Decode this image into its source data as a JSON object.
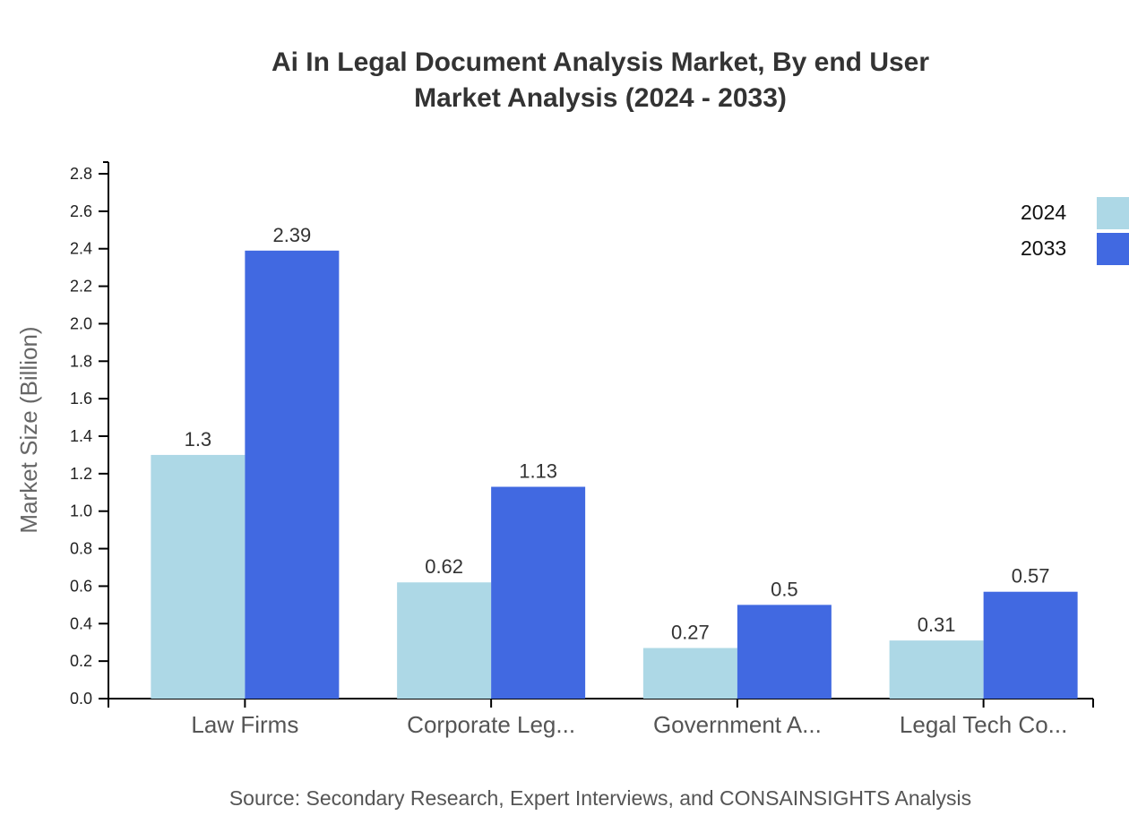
{
  "title": {
    "line1": "Ai In Legal Document Analysis Market, By end User",
    "line2": "Market Analysis (2024 - 2033)"
  },
  "source": "Source: Secondary Research, Expert Interviews, and CONSAINSIGHTS Analysis",
  "legend": [
    {
      "label": "2024",
      "color": "#add8e6"
    },
    {
      "label": "2033",
      "color": "#4169e1"
    }
  ],
  "chart_data": {
    "type": "bar",
    "title": "Ai In Legal Document Analysis Market, By end User Market Analysis (2024 - 2033)",
    "xlabel": "",
    "ylabel": "Market Size (Billion)",
    "ylim": [
      0,
      2.8
    ],
    "yticks": [
      "0.0",
      "0.2",
      "0.4",
      "0.6",
      "0.8",
      "1.0",
      "1.2",
      "1.4",
      "1.6",
      "1.8",
      "2.0",
      "2.2",
      "2.4",
      "2.6",
      "2.8"
    ],
    "categories": [
      "Law Firms",
      "Corporate Leg...",
      "Government A...",
      "Legal Tech Co..."
    ],
    "series": [
      {
        "name": "2024",
        "color": "#add8e6",
        "values": [
          1.3,
          0.62,
          0.27,
          0.31
        ]
      },
      {
        "name": "2033",
        "color": "#4169e1",
        "values": [
          2.39,
          1.13,
          0.5,
          0.57
        ]
      }
    ],
    "grid": false,
    "legend_position": "top-right"
  }
}
